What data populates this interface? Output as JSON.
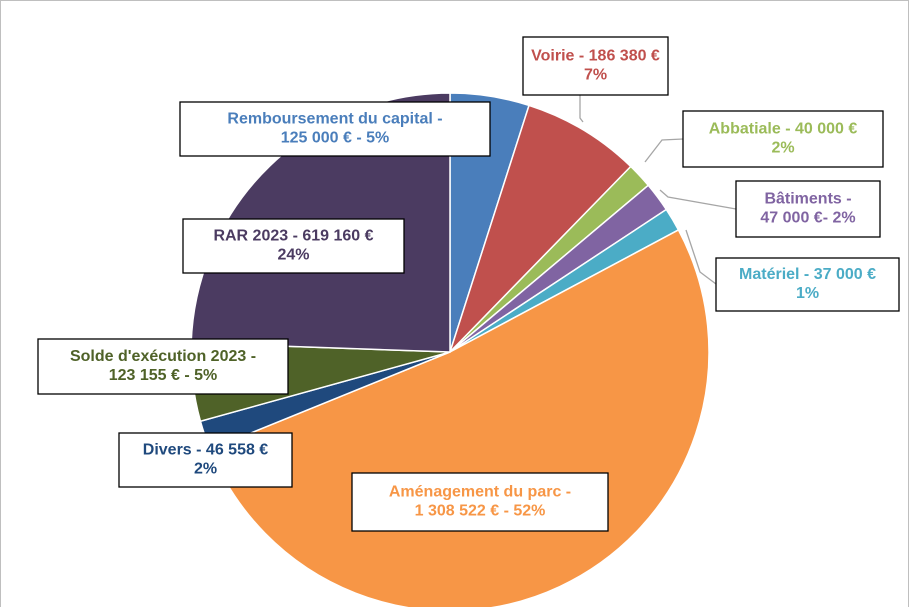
{
  "chart_data": {
    "type": "pie",
    "values": [
      125000,
      186380,
      40000,
      47000,
      37000,
      1308522,
      46558,
      123155,
      619160
    ],
    "value_labels": [
      [
        "Remboursement du capital -",
        "125 000 € - 5%"
      ],
      [
        "Voirie - 186 380 €",
        "7%"
      ],
      [
        "Abbatiale - 40 000 €",
        "2%"
      ],
      [
        "Bâtiments -",
        "47 000 €- 2%"
      ],
      [
        "Matériel - 37 000 €",
        "1%"
      ],
      [
        "Aménagement du parc -",
        "1 308 522 € - 52%"
      ],
      [
        "Divers - 46 558 €",
        "2%"
      ],
      [
        "Solde d'exécution 2023 -",
        "123 155  € - 5%"
      ],
      [
        "RAR 2023 - 619 160 €",
        "24%"
      ]
    ],
    "colors": [
      "#4a7ebb",
      "#c0504d",
      "#9bbb59",
      "#8064a2",
      "#4bacc6",
      "#f79646",
      "#1f497d",
      "#4f6228",
      "#4b3b61"
    ]
  }
}
